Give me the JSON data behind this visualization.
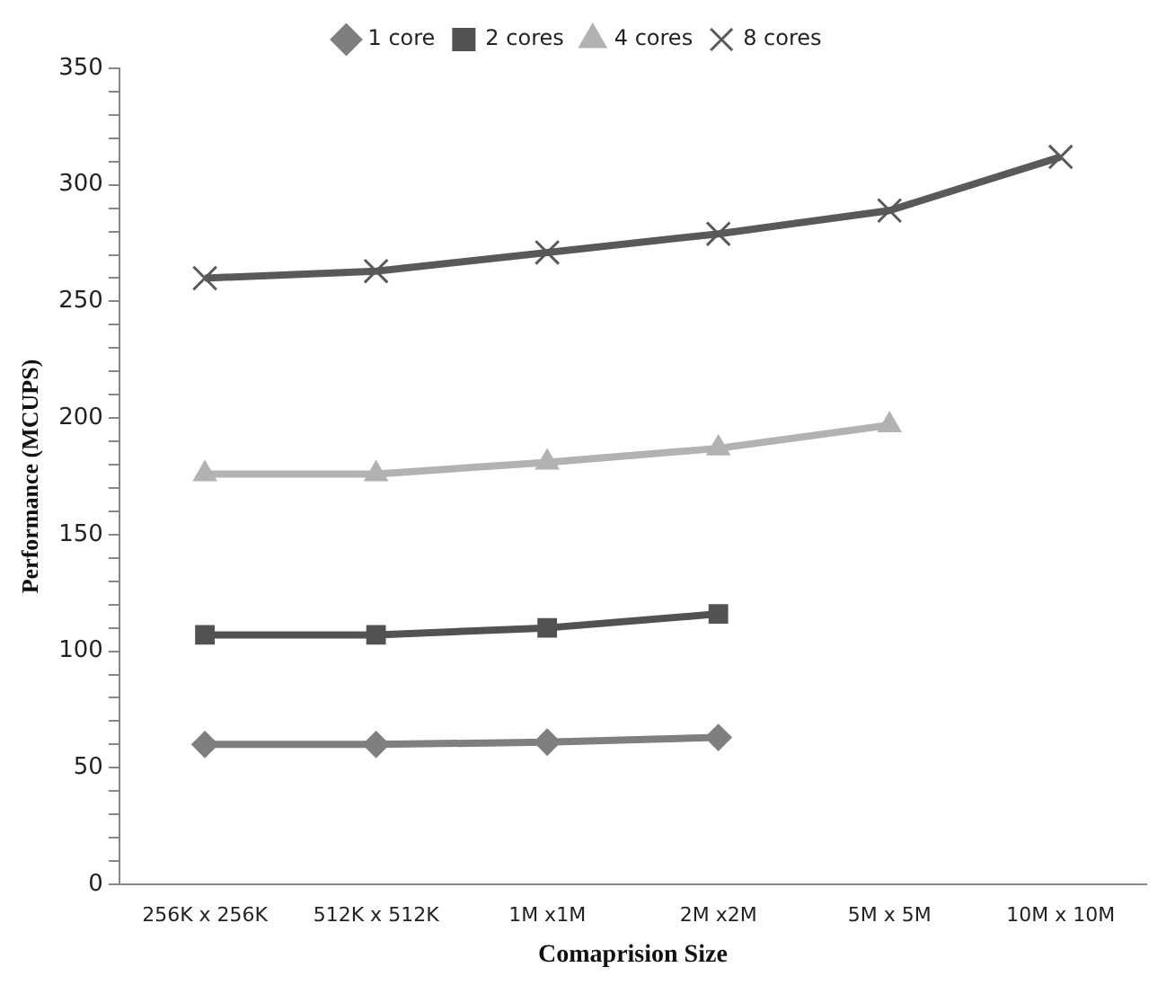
{
  "chart_data": {
    "type": "line",
    "xlabel": "Comaprision Size",
    "ylabel": "Performance (MCUPS)",
    "categories": [
      "256K x 256K",
      "512K x 512K",
      "1M x1M",
      "2M x2M",
      "5M x 5M",
      "10M x 10M"
    ],
    "series": [
      {
        "name": "1 core",
        "color": "#7f7f7f",
        "marker": "diamond",
        "values": [
          60,
          60,
          61,
          63,
          null,
          null
        ]
      },
      {
        "name": "2 cores",
        "color": "#525252",
        "marker": "square",
        "values": [
          107,
          107,
          110,
          116,
          null,
          null
        ]
      },
      {
        "name": "4 cores",
        "color": "#b2b2b2",
        "marker": "triangle",
        "values": [
          176,
          176,
          181,
          187,
          197,
          null
        ]
      },
      {
        "name": "8 cores",
        "color": "#595959",
        "marker": "cross",
        "values": [
          260,
          263,
          271,
          279,
          289,
          312
        ]
      }
    ],
    "ylim": [
      0,
      350
    ],
    "yticks": [
      0,
      {
        "value": 10,
        "label": null
      },
      {
        "value": 20,
        "label": null
      },
      {
        "value": 30,
        "label": null
      },
      {
        "value": 40,
        "label": null
      },
      50,
      {
        "value": 60,
        "label": null
      },
      {
        "value": 70,
        "label": null
      },
      {
        "value": 80,
        "label": null
      },
      {
        "value": 90,
        "label": null
      },
      100,
      {
        "value": 110,
        "label": null
      },
      {
        "value": 120,
        "label": null
      },
      {
        "value": 130,
        "label": null
      },
      {
        "value": 140,
        "label": null
      },
      150,
      {
        "value": 160,
        "label": null
      },
      {
        "value": 170,
        "label": null
      },
      {
        "value": 180,
        "label": null
      },
      {
        "value": 190,
        "label": null
      },
      200,
      {
        "value": 210,
        "label": null
      },
      {
        "value": 220,
        "label": null
      },
      {
        "value": 230,
        "label": null
      },
      {
        "value": 240,
        "label": null
      },
      250,
      {
        "value": 260,
        "label": null
      },
      {
        "value": 270,
        "label": null
      },
      {
        "value": 280,
        "label": null
      },
      {
        "value": 290,
        "label": null
      },
      300,
      {
        "value": 310,
        "label": null
      },
      {
        "value": 320,
        "label": null
      },
      {
        "value": 330,
        "label": null
      },
      {
        "value": 340,
        "label": null
      },
      350
    ],
    "grid": false,
    "legend": "top",
    "line_style": "solid"
  }
}
